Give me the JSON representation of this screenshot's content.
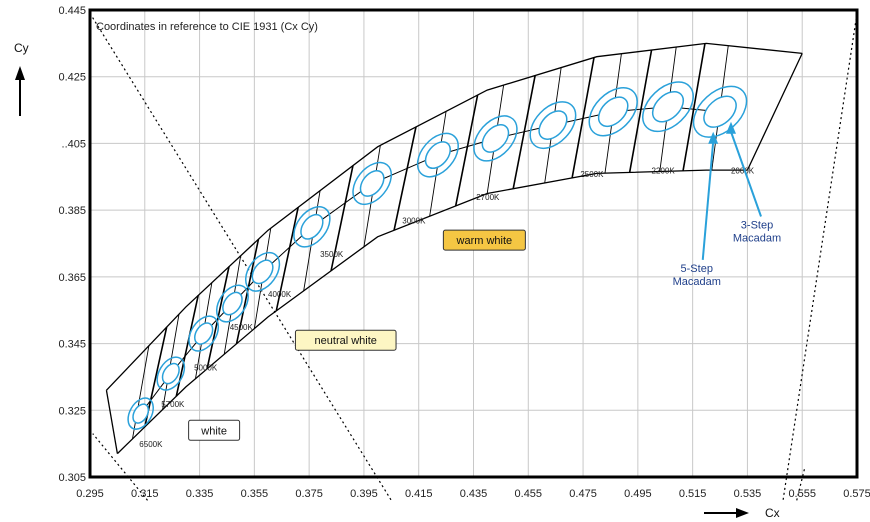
{
  "chart_data": {
    "type": "scatter",
    "title": "Coordinates in reference to CIE 1931 (Cx Cy)",
    "xlabel": "Cx",
    "ylabel": "Cy",
    "xlim": [
      0.295,
      0.575
    ],
    "ylim": [
      0.305,
      0.445
    ],
    "x_ticks": [
      "0.295",
      "0.315",
      "0.335",
      "0.355",
      "0.375",
      "0.395",
      "0.415",
      "0.435",
      "0.455",
      "0.475",
      "0.495",
      "0.515",
      "0.535",
      "0.555",
      "0.575"
    ],
    "y_ticks": [
      "0.305",
      "0.325",
      "0.345",
      "0.365",
      "0.385",
      "..405",
      "0.425",
      "0.445"
    ],
    "grid": true,
    "cct_labels": [
      {
        "text": "6500K",
        "x": 0.313,
        "y": 0.314
      },
      {
        "text": "5700K",
        "x": 0.321,
        "y": 0.326
      },
      {
        "text": "5000K",
        "x": 0.333,
        "y": 0.337
      },
      {
        "text": "4500K",
        "x": 0.346,
        "y": 0.349
      },
      {
        "text": "4000K",
        "x": 0.36,
        "y": 0.359
      },
      {
        "text": "3500K",
        "x": 0.379,
        "y": 0.371
      },
      {
        "text": "3000K",
        "x": 0.409,
        "y": 0.381
      },
      {
        "text": "2700K",
        "x": 0.436,
        "y": 0.388
      },
      {
        "text": "2500K",
        "x": 0.474,
        "y": 0.395
      },
      {
        "text": "2200K",
        "x": 0.5,
        "y": 0.396
      },
      {
        "text": "2000K",
        "x": 0.529,
        "y": 0.396
      }
    ],
    "ellipse_centers": [
      {
        "x": 0.3135,
        "y": 0.324
      },
      {
        "x": 0.3245,
        "y": 0.336
      },
      {
        "x": 0.3365,
        "y": 0.348
      },
      {
        "x": 0.347,
        "y": 0.357
      },
      {
        "x": 0.358,
        "y": 0.3665
      },
      {
        "x": 0.376,
        "y": 0.38
      },
      {
        "x": 0.398,
        "y": 0.393
      },
      {
        "x": 0.422,
        "y": 0.4015
      },
      {
        "x": 0.443,
        "y": 0.4065
      },
      {
        "x": 0.464,
        "y": 0.4105
      },
      {
        "x": 0.486,
        "y": 0.4145
      },
      {
        "x": 0.506,
        "y": 0.416
      },
      {
        "x": 0.525,
        "y": 0.4145
      }
    ],
    "upper_boundary": [
      [
        0.301,
        0.331
      ],
      [
        0.33,
        0.356
      ],
      [
        0.36,
        0.379
      ],
      [
        0.4,
        0.404
      ],
      [
        0.44,
        0.421
      ],
      [
        0.48,
        0.431
      ],
      [
        0.52,
        0.435
      ],
      [
        0.555,
        0.432
      ]
    ],
    "lower_boundary": [
      [
        0.305,
        0.312
      ],
      [
        0.33,
        0.332
      ],
      [
        0.36,
        0.353
      ],
      [
        0.4,
        0.377
      ],
      [
        0.44,
        0.39
      ],
      [
        0.48,
        0.396
      ],
      [
        0.52,
        0.397
      ],
      [
        0.535,
        0.397
      ]
    ],
    "legend_boxes": [
      {
        "text": "warm white",
        "x": 0.424,
        "y": 0.376,
        "color": "#f5c643"
      },
      {
        "text": "neutral white",
        "x": 0.37,
        "y": 0.346,
        "color": "#fdf6c3"
      },
      {
        "text": "white",
        "x": 0.331,
        "y": 0.319,
        "color": "#ffffff"
      }
    ],
    "annotations": [
      {
        "text": [
          "3-Step",
          "Macadam"
        ],
        "x": 0.5385,
        "y": 0.3795
      },
      {
        "text": [
          "5-Step",
          "Macadam"
        ],
        "x": 0.5165,
        "y": 0.3665
      }
    ],
    "colors": {
      "ellipse": "#2aa1da",
      "arrow": "#2aa1da",
      "annotation_text": "#1f3f8a",
      "frame": "#000000",
      "grid": "#c8c8c8"
    }
  }
}
